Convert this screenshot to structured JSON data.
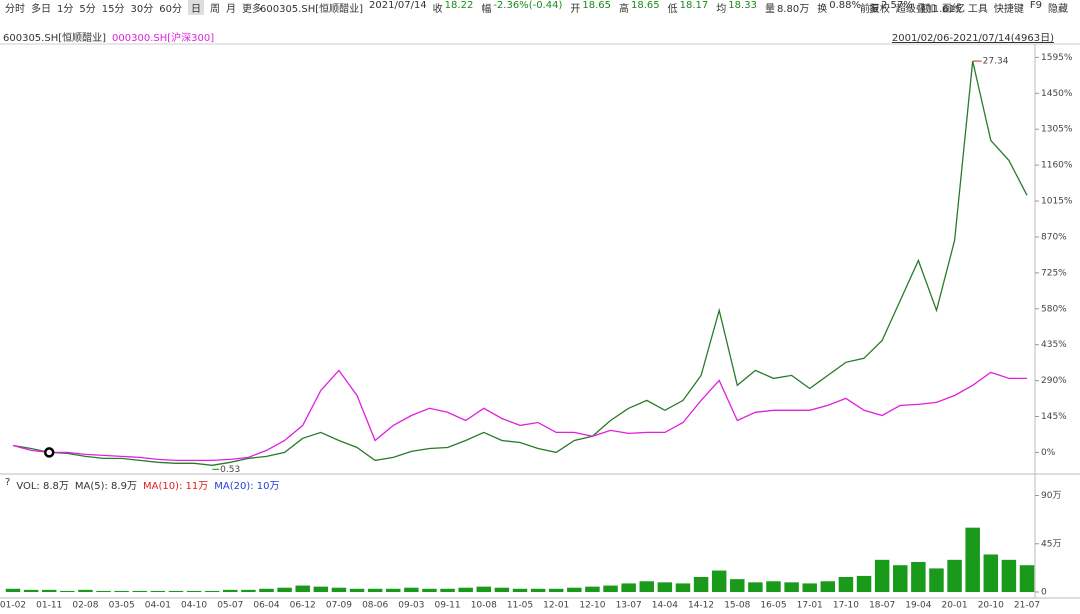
{
  "toolbar": [
    "分时",
    "多日",
    "1分",
    "5分",
    "15分",
    "30分",
    "60分",
    "日",
    "周",
    "月",
    "更多"
  ],
  "info": {
    "name": "600305.SH[恒顺醋业]",
    "date": "2021/07/14",
    "fields": [
      {
        "label": "收",
        "value": "18.22"
      },
      {
        "label": "幅",
        "value": "-2.36%(-0.44)"
      },
      {
        "label": "开",
        "value": "18.65"
      },
      {
        "label": "高",
        "value": "18.65"
      },
      {
        "label": "低",
        "value": "18.17"
      },
      {
        "label": "均",
        "value": "18.33"
      },
      {
        "label": "量",
        "value": "8.80万"
      },
      {
        "label": "换",
        "value": "0.88%"
      },
      {
        "label": "振",
        "value": "2.57%"
      },
      {
        "label": "额",
        "value": "1.61亿"
      }
    ]
  },
  "right_tools": [
    "前复权",
    "超级叠加",
    "画线",
    "工具",
    "快捷键",
    "F9",
    "隐藏"
  ],
  "range": "2001/02/06-2021/07/14(4963日)",
  "chart_data": [
    {
      "type": "line",
      "categories": [
        "01-02",
        null,
        "01-11",
        null,
        "02-08",
        null,
        "03-05",
        null,
        "04-01",
        null,
        "04-10",
        null,
        "05-07",
        null,
        "06-04",
        null,
        "06-12",
        null,
        "07-09",
        null,
        "08-06",
        null,
        "09-03",
        null,
        "09-11",
        null,
        "10-08",
        null,
        "11-05",
        null,
        "12-01",
        null,
        "12-10",
        null,
        "13-07",
        null,
        "14-04",
        null,
        "14-12",
        null,
        "15-08",
        null,
        "16-05",
        null,
        "17-01",
        null,
        "17-10",
        null,
        "18-07",
        null,
        "19-04",
        null,
        "20-01",
        null,
        "20-10",
        null,
        "21-07"
      ],
      "series": [
        {
          "name": "600305.SH[恒顺醋业]",
          "color": "#2a7a2a",
          "values": [
            28,
            16,
            0,
            -4,
            -16,
            -24,
            -24,
            -32,
            -40,
            -44,
            -44,
            -52,
            -40,
            -24,
            -16,
            0,
            57,
            81,
            48,
            20,
            -32,
            -20,
            4,
            16,
            20,
            48,
            81,
            48,
            40,
            16,
            0,
            48,
            65,
            129,
            178,
            210,
            170,
            210,
            311,
            574,
            271,
            331,
            299,
            311,
            258,
            311,
            364,
            380,
            452,
            614,
            775,
            574,
            856,
            1580,
            1260,
            1179,
            1038
          ]
        },
        {
          "name": "000300.SH[沪深300]",
          "color": "#e020e0",
          "values": [
            28,
            8,
            0,
            0,
            -8,
            -12,
            -16,
            -20,
            -28,
            -32,
            -32,
            -32,
            -28,
            -20,
            8,
            48,
            109,
            250,
            331,
            230,
            48,
            109,
            149,
            178,
            162,
            129,
            178,
            137,
            109,
            121,
            81,
            81,
            65,
            89,
            77,
            81,
            81,
            121,
            210,
            291,
            129,
            162,
            170,
            170,
            170,
            190,
            218,
            170,
            149,
            190,
            194,
            202,
            230,
            271,
            323,
            299,
            299
          ]
        }
      ],
      "annotations": [
        "27.34",
        "0.53"
      ],
      "ylim": [
        -75,
        1645
      ],
      "yticks": [
        {
          "value": 0,
          "label": "0%"
        },
        {
          "value": 145,
          "label": "145%"
        },
        {
          "value": 290,
          "label": "290%"
        },
        {
          "value": 435,
          "label": "435%"
        },
        {
          "value": 580,
          "label": "580%"
        },
        {
          "value": 725,
          "label": "725%"
        },
        {
          "value": 870,
          "label": "870%"
        },
        {
          "value": 1015,
          "label": "1015%"
        },
        {
          "value": 1160,
          "label": "1160%"
        },
        {
          "value": 1305,
          "label": "1305%"
        },
        {
          "value": 1450,
          "label": "1450%"
        },
        {
          "value": 1595,
          "label": "1595%"
        }
      ]
    },
    {
      "type": "bar",
      "legend": [
        "?",
        "VOL: 8.8万",
        "MA(5): 8.9万",
        "MA(10): 11万",
        "MA(20): 10万"
      ],
      "color": "#1a9a1a",
      "values": [
        3,
        2,
        2,
        1,
        2,
        1,
        1,
        1,
        1,
        1,
        1,
        1,
        2,
        2,
        3,
        4,
        6,
        5,
        4,
        3,
        3,
        3,
        4,
        3,
        3,
        4,
        5,
        4,
        3,
        3,
        3,
        4,
        5,
        6,
        8,
        10,
        9,
        8,
        14,
        20,
        12,
        9,
        10,
        9,
        8,
        10,
        14,
        15,
        30,
        25,
        28,
        22,
        30,
        60,
        35,
        30,
        25
      ],
      "ylim": [
        0,
        97
      ],
      "yticks": [
        0,
        {
          "value": 45,
          "label": "45万"
        },
        {
          "value": 90,
          "label": "90万"
        }
      ]
    }
  ]
}
